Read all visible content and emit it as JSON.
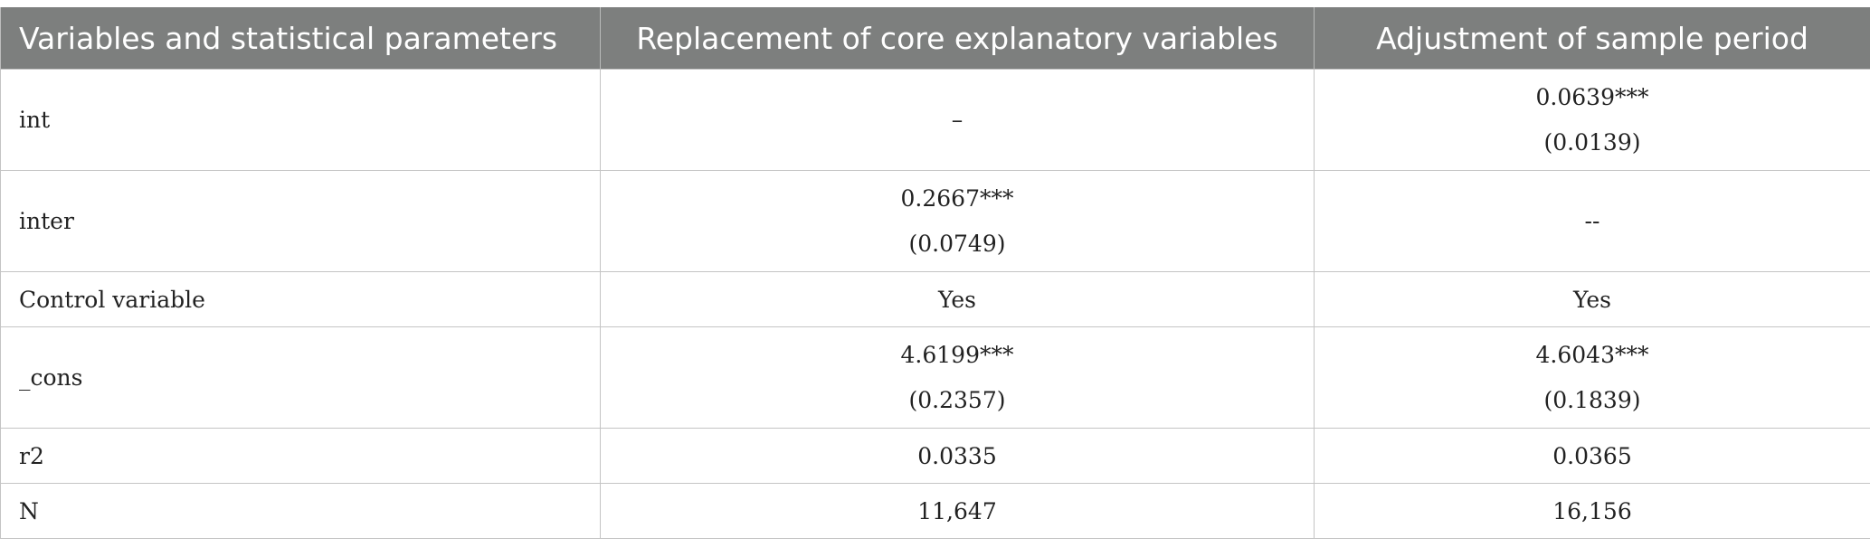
{
  "table": {
    "headers": [
      "Variables and statistical parameters",
      "Replacement of core explanatory variables",
      "Adjustment of sample period"
    ],
    "rows": [
      {
        "label": "int",
        "col1": {
          "value": "–",
          "se": ""
        },
        "col2": {
          "value": "0.0639***",
          "se": "(0.0139)"
        }
      },
      {
        "label": "inter",
        "col1": {
          "value": "0.2667***",
          "se": "(0.0749)"
        },
        "col2": {
          "value": "--",
          "se": ""
        }
      },
      {
        "label": "Control variable",
        "col1": {
          "value": "Yes",
          "se": ""
        },
        "col2": {
          "value": "Yes",
          "se": ""
        }
      },
      {
        "label": "_cons",
        "col1": {
          "value": "4.6199***",
          "se": "(0.2357)"
        },
        "col2": {
          "value": "4.6043***",
          "se": "(0.1839)"
        }
      },
      {
        "label": "r2",
        "col1": {
          "value": "0.0335",
          "se": ""
        },
        "col2": {
          "value": "0.0365",
          "se": ""
        }
      },
      {
        "label": "N",
        "col1": {
          "value": "11,647",
          "se": ""
        },
        "col2": {
          "value": "16,156",
          "se": ""
        }
      }
    ]
  },
  "colors": {
    "header_bg": "#7d7f7e",
    "header_text": "#ffffff",
    "border": "#c4c4c4",
    "body_text": "#222222"
  }
}
